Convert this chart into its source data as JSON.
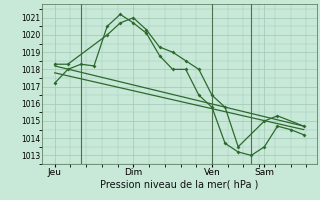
{
  "bg_color": "#c8e8d8",
  "grid_color": "#a0c8b8",
  "line_color": "#2d6a2d",
  "xlabel": "Pression niveau de la mer( hPa )",
  "ylim": [
    1012.5,
    1021.8
  ],
  "yticks": [
    1013,
    1014,
    1015,
    1016,
    1017,
    1018,
    1019,
    1020,
    1021
  ],
  "day_labels": [
    "Jeu",
    "Dim",
    "Ven",
    "Sam"
  ],
  "day_positions": [
    0,
    30,
    60,
    80
  ],
  "vlines_x": [
    10,
    60,
    75
  ],
  "xlim": [
    -5,
    100
  ],
  "line1_x": [
    0,
    5,
    10,
    15,
    20,
    25,
    30,
    35,
    40,
    45,
    50,
    55,
    60,
    65,
    70,
    75,
    80,
    85,
    90,
    95
  ],
  "line1_y": [
    1017.2,
    1018.0,
    1018.3,
    1018.2,
    1020.5,
    1021.2,
    1020.7,
    1020.1,
    1018.8,
    1018.0,
    1018.0,
    1016.5,
    1015.8,
    1013.7,
    1013.2,
    1013.0,
    1013.5,
    1014.7,
    1014.5,
    1014.2
  ],
  "line2_x": [
    0,
    5,
    20,
    25,
    30,
    35,
    40,
    45,
    50,
    55,
    60,
    65,
    70,
    80,
    85,
    95
  ],
  "line2_y": [
    1018.3,
    1018.3,
    1020.0,
    1020.7,
    1021.0,
    1020.3,
    1019.3,
    1019.0,
    1018.5,
    1018.0,
    1016.5,
    1015.8,
    1013.5,
    1015.0,
    1015.3,
    1014.7
  ],
  "line3_x": [
    0,
    95
  ],
  "line3_y": [
    1018.2,
    1014.7
  ],
  "line4_x": [
    0,
    95
  ],
  "line4_y": [
    1017.8,
    1014.5
  ]
}
